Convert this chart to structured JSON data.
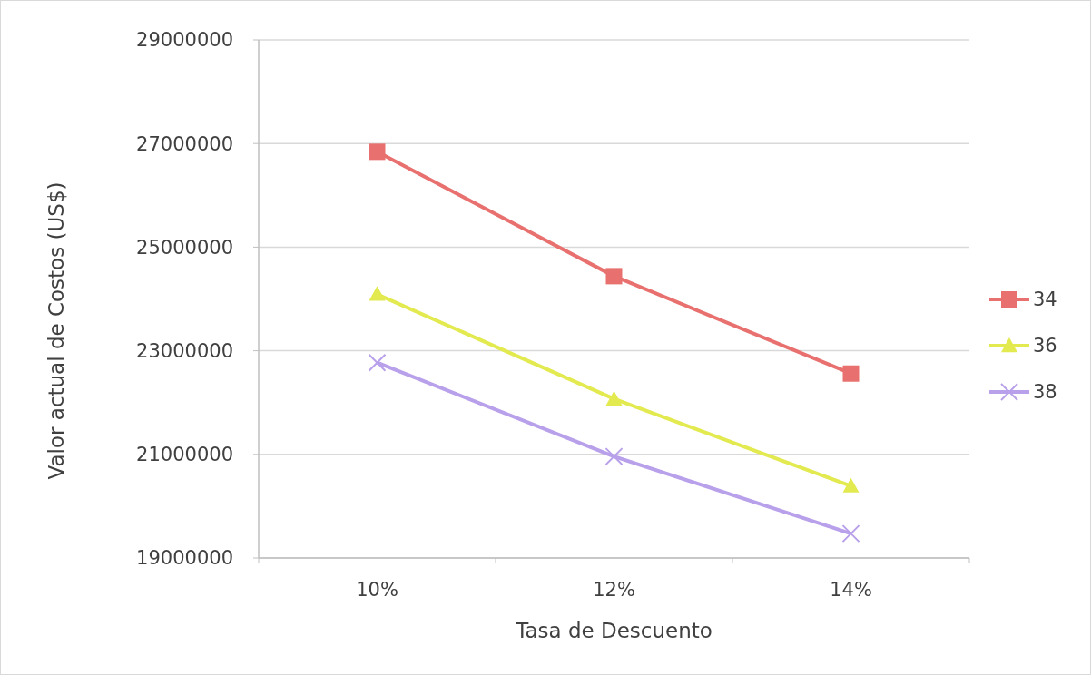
{
  "chart_data": {
    "type": "line",
    "xlabel": "Tasa de Descuento",
    "ylabel": "Valor actual de Costos (US$)",
    "categories": [
      "10%",
      "12%",
      "14%"
    ],
    "series": [
      {
        "name": "34",
        "color": "#e8716f",
        "marker": "square",
        "values": [
          26840000,
          24440000,
          22560000
        ]
      },
      {
        "name": "36",
        "color": "#e2ea50",
        "marker": "triangle",
        "values": [
          24090000,
          22070000,
          20390000
        ]
      },
      {
        "name": "38",
        "color": "#b8a0ea",
        "marker": "cross",
        "values": [
          22770000,
          20960000,
          19470000
        ]
      }
    ],
    "ylim": [
      19000000,
      29000000
    ],
    "yticks": [
      19000000,
      21000000,
      23000000,
      25000000,
      27000000,
      29000000
    ],
    "grid": "y",
    "legend": "right",
    "line_style": "solid"
  }
}
